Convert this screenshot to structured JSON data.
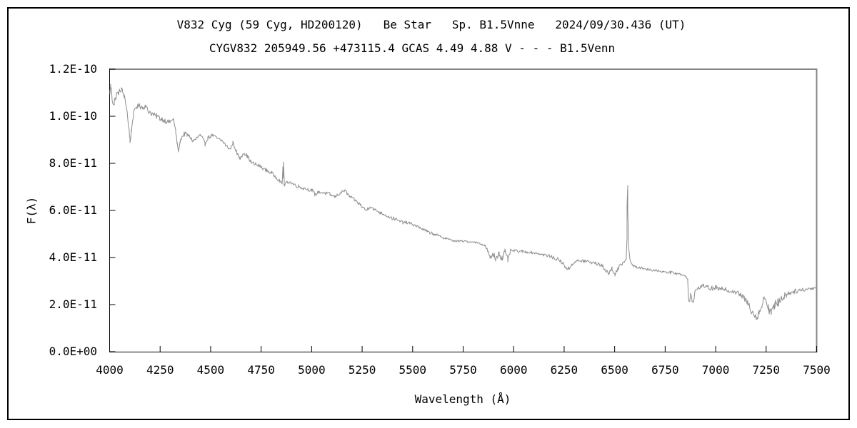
{
  "window": {
    "background": "#ffffff",
    "border_color": "#000000"
  },
  "chart_data": {
    "type": "line",
    "title": "V832 Cyg (59 Cyg, HD200120)   Be Star   Sp. B1.5Vnne   2024/09/30.436 (UT)",
    "subtitle": "CYGV832 205949.56 +473115.4 GCAS 4.49 4.88 V - - - B1.5Venn",
    "xlabel": "Wavelength (Å)",
    "ylabel": "F(λ)",
    "xlim": [
      4000,
      7500
    ],
    "ylim": [
      0,
      1.2e-10
    ],
    "grid": false,
    "legend": false,
    "x_ticks": {
      "values": [
        4000,
        4250,
        4500,
        4750,
        5000,
        5250,
        5500,
        5750,
        6000,
        6250,
        6500,
        6750,
        7000,
        7250,
        7500
      ],
      "labels": [
        "4000",
        "4250",
        "4500",
        "4750",
        "5000",
        "5250",
        "5500",
        "5750",
        "6000",
        "6250",
        "6500",
        "6750",
        "7000",
        "7250",
        "7500"
      ]
    },
    "y_ticks": {
      "values": [
        0,
        2e-11,
        4e-11,
        6e-11,
        8e-11,
        1e-10,
        1.2e-10
      ],
      "labels": [
        "0.0E+00",
        "2.0E-11",
        "4.0E-11",
        "6.0E-11",
        "8.0E-11",
        "1.0E-10",
        "1.2E-10"
      ]
    },
    "style": {
      "line_color": "#8c8c8c",
      "axis_color": "#000000",
      "frame_shadow_color": "#858585",
      "noise_seed": 1234
    },
    "flux_scale": 1e-11,
    "series": [
      {
        "name": "spectrum",
        "points_format": [
          "wavelength_angstrom",
          "flux_1e-11",
          "jitter_1e-11"
        ],
        "points": [
          [
            4000,
            11.0,
            0.3
          ],
          [
            4006,
            11.3,
            0.15
          ],
          [
            4012,
            10.8,
            0.25
          ],
          [
            4022,
            10.5,
            0.18
          ],
          [
            4032,
            10.9,
            0.15
          ],
          [
            4046,
            11.05,
            0.12
          ],
          [
            4060,
            11.15,
            0.1
          ],
          [
            4072,
            10.85,
            0.12
          ],
          [
            4085,
            10.3,
            0.1
          ],
          [
            4096,
            9.4,
            0.08
          ],
          [
            4102,
            8.9,
            0.05
          ],
          [
            4108,
            9.4,
            0.08
          ],
          [
            4118,
            10.1,
            0.1
          ],
          [
            4132,
            10.4,
            0.1
          ],
          [
            4150,
            10.45,
            0.12
          ],
          [
            4164,
            10.35,
            0.12
          ],
          [
            4176,
            10.45,
            0.1
          ],
          [
            4190,
            10.25,
            0.12
          ],
          [
            4210,
            10.1,
            0.12
          ],
          [
            4232,
            10.0,
            0.12
          ],
          [
            4255,
            9.9,
            0.12
          ],
          [
            4278,
            9.8,
            0.1
          ],
          [
            4300,
            9.75,
            0.1
          ],
          [
            4315,
            9.9,
            0.08
          ],
          [
            4326,
            9.4,
            0.08
          ],
          [
            4334,
            8.85,
            0.06
          ],
          [
            4341,
            8.5,
            0.05
          ],
          [
            4347,
            8.85,
            0.06
          ],
          [
            4356,
            9.1,
            0.08
          ],
          [
            4370,
            9.25,
            0.1
          ],
          [
            4385,
            9.2,
            0.1
          ],
          [
            4400,
            9.1,
            0.1
          ],
          [
            4412,
            8.95,
            0.08
          ],
          [
            4430,
            9.05,
            0.1
          ],
          [
            4447,
            9.2,
            0.08
          ],
          [
            4460,
            9.05,
            0.08
          ],
          [
            4472,
            8.82,
            0.08
          ],
          [
            4487,
            9.1,
            0.08
          ],
          [
            4507,
            9.2,
            0.08
          ],
          [
            4532,
            9.05,
            0.08
          ],
          [
            4558,
            8.95,
            0.08
          ],
          [
            4580,
            8.72,
            0.08
          ],
          [
            4598,
            8.6,
            0.07
          ],
          [
            4611,
            8.9,
            0.06
          ],
          [
            4627,
            8.5,
            0.08
          ],
          [
            4645,
            8.2,
            0.08
          ],
          [
            4663,
            8.45,
            0.08
          ],
          [
            4682,
            8.3,
            0.08
          ],
          [
            4703,
            8.02,
            0.08
          ],
          [
            4725,
            7.95,
            0.08
          ],
          [
            4750,
            7.85,
            0.08
          ],
          [
            4775,
            7.7,
            0.08
          ],
          [
            4800,
            7.6,
            0.08
          ],
          [
            4823,
            7.42,
            0.07
          ],
          [
            4843,
            7.25,
            0.06
          ],
          [
            4854,
            7.12,
            0.04
          ],
          [
            4858,
            7.85,
            0
          ],
          [
            4860,
            7.35,
            0
          ],
          [
            4862,
            8.05,
            0
          ],
          [
            4865,
            7.02,
            0.02
          ],
          [
            4874,
            7.2,
            0.05
          ],
          [
            4890,
            7.22,
            0.07
          ],
          [
            4912,
            7.1,
            0.07
          ],
          [
            4935,
            7.02,
            0.07
          ],
          [
            4958,
            6.95,
            0.07
          ],
          [
            4982,
            6.9,
            0.07
          ],
          [
            5002,
            6.85,
            0.07
          ],
          [
            5016,
            6.68,
            0.07
          ],
          [
            5034,
            6.78,
            0.07
          ],
          [
            5062,
            6.75,
            0.07
          ],
          [
            5090,
            6.68,
            0.07
          ],
          [
            5114,
            6.58,
            0.07
          ],
          [
            5140,
            6.72,
            0.07
          ],
          [
            5163,
            6.85,
            0.07
          ],
          [
            5186,
            6.6,
            0.07
          ],
          [
            5212,
            6.45,
            0.07
          ],
          [
            5242,
            6.23,
            0.07
          ],
          [
            5270,
            6.0,
            0.08
          ],
          [
            5290,
            6.18,
            0.08
          ],
          [
            5312,
            6.02,
            0.07
          ],
          [
            5342,
            5.9,
            0.07
          ],
          [
            5376,
            5.76,
            0.07
          ],
          [
            5412,
            5.62,
            0.07
          ],
          [
            5450,
            5.5,
            0.06
          ],
          [
            5490,
            5.45,
            0.06
          ],
          [
            5530,
            5.3,
            0.06
          ],
          [
            5568,
            5.12,
            0.06
          ],
          [
            5603,
            5.0,
            0.06
          ],
          [
            5635,
            4.9,
            0.05
          ],
          [
            5665,
            4.82,
            0.05
          ],
          [
            5695,
            4.72,
            0.04
          ],
          [
            5732,
            4.7,
            0.04
          ],
          [
            5767,
            4.68,
            0.04
          ],
          [
            5800,
            4.66,
            0.04
          ],
          [
            5832,
            4.6,
            0.04
          ],
          [
            5858,
            4.5,
            0.04
          ],
          [
            5871,
            4.3,
            0.08
          ],
          [
            5884,
            3.95,
            0.1
          ],
          [
            5897,
            4.15,
            0.15
          ],
          [
            5911,
            3.95,
            0.15
          ],
          [
            5927,
            4.2,
            0.13
          ],
          [
            5943,
            3.95,
            0.15
          ],
          [
            5957,
            4.25,
            0.12
          ],
          [
            5971,
            3.9,
            0.13
          ],
          [
            5984,
            4.3,
            0.08
          ],
          [
            6002,
            4.28,
            0.05
          ],
          [
            6040,
            4.25,
            0.05
          ],
          [
            6080,
            4.22,
            0.05
          ],
          [
            6120,
            4.17,
            0.05
          ],
          [
            6160,
            4.1,
            0.06
          ],
          [
            6198,
            4.0,
            0.07
          ],
          [
            6233,
            3.85,
            0.08
          ],
          [
            6256,
            3.62,
            0.1
          ],
          [
            6272,
            3.5,
            0.1
          ],
          [
            6290,
            3.74,
            0.08
          ],
          [
            6318,
            3.86,
            0.07
          ],
          [
            6352,
            3.85,
            0.07
          ],
          [
            6384,
            3.8,
            0.07
          ],
          [
            6414,
            3.74,
            0.07
          ],
          [
            6440,
            3.64,
            0.08
          ],
          [
            6458,
            3.45,
            0.1
          ],
          [
            6472,
            3.3,
            0.12
          ],
          [
            6487,
            3.55,
            0.1
          ],
          [
            6502,
            3.3,
            0.12
          ],
          [
            6517,
            3.5,
            0.1
          ],
          [
            6536,
            3.73,
            0.07
          ],
          [
            6549,
            3.85,
            0.04
          ],
          [
            6557,
            3.95,
            0.03
          ],
          [
            6560,
            4.8,
            0
          ],
          [
            6562,
            6.2,
            0
          ],
          [
            6563.5,
            7.07,
            0
          ],
          [
            6565,
            6.0,
            0
          ],
          [
            6567,
            5.0,
            0
          ],
          [
            6570,
            4.5,
            0
          ],
          [
            6574,
            3.97,
            0.02
          ],
          [
            6581,
            3.78,
            0.03
          ],
          [
            6592,
            3.65,
            0.04
          ],
          [
            6605,
            3.58,
            0.05
          ],
          [
            6628,
            3.56,
            0.05
          ],
          [
            6655,
            3.52,
            0.05
          ],
          [
            6683,
            3.47,
            0.05
          ],
          [
            6712,
            3.44,
            0.05
          ],
          [
            6742,
            3.4,
            0.05
          ],
          [
            6772,
            3.37,
            0.05
          ],
          [
            6800,
            3.34,
            0.05
          ],
          [
            6828,
            3.28,
            0.05
          ],
          [
            6850,
            3.22,
            0.04
          ],
          [
            6861,
            3.1,
            0.03
          ],
          [
            6866,
            2.25,
            0.06
          ],
          [
            6871,
            2.1,
            0.06
          ],
          [
            6877,
            2.45,
            0.08
          ],
          [
            6883,
            2.15,
            0.08
          ],
          [
            6889,
            2.1,
            0.06
          ],
          [
            6898,
            2.55,
            0.08
          ],
          [
            6912,
            2.7,
            0.08
          ],
          [
            6928,
            2.76,
            0.09
          ],
          [
            6945,
            2.8,
            0.1
          ],
          [
            6963,
            2.72,
            0.1
          ],
          [
            6982,
            2.68,
            0.1
          ],
          [
            7002,
            2.72,
            0.1
          ],
          [
            7022,
            2.62,
            0.1
          ],
          [
            7042,
            2.7,
            0.1
          ],
          [
            7062,
            2.6,
            0.1
          ],
          [
            7082,
            2.58,
            0.1
          ],
          [
            7102,
            2.52,
            0.1
          ],
          [
            7122,
            2.42,
            0.12
          ],
          [
            7142,
            2.25,
            0.13
          ],
          [
            7160,
            2.05,
            0.15
          ],
          [
            7178,
            1.75,
            0.15
          ],
          [
            7194,
            1.55,
            0.15
          ],
          [
            7205,
            1.45,
            0.13
          ],
          [
            7216,
            1.7,
            0.15
          ],
          [
            7228,
            1.9,
            0.15
          ],
          [
            7240,
            2.32,
            0.12
          ],
          [
            7251,
            2.18,
            0.15
          ],
          [
            7262,
            1.85,
            0.2
          ],
          [
            7276,
            1.72,
            0.25
          ],
          [
            7292,
            1.9,
            0.25
          ],
          [
            7308,
            2.08,
            0.2
          ],
          [
            7326,
            2.28,
            0.18
          ],
          [
            7348,
            2.42,
            0.14
          ],
          [
            7372,
            2.52,
            0.12
          ],
          [
            7398,
            2.58,
            0.1
          ],
          [
            7426,
            2.62,
            0.08
          ],
          [
            7456,
            2.66,
            0.07
          ],
          [
            7484,
            2.7,
            0.06
          ],
          [
            7500,
            2.72,
            0.05
          ]
        ]
      }
    ]
  }
}
